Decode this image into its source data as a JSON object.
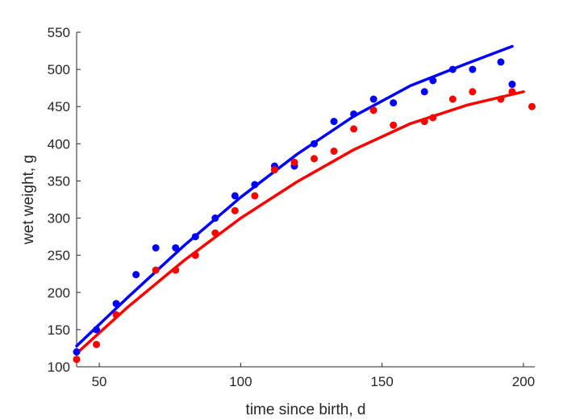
{
  "chart_data": {
    "type": "scatter",
    "xlabel": "time since birth, d",
    "ylabel": "wet weight, g",
    "xlim": [
      42,
      204
    ],
    "ylim": [
      100,
      550
    ],
    "xticks": [
      50,
      100,
      150,
      200
    ],
    "yticks": [
      100,
      150,
      200,
      250,
      300,
      350,
      400,
      450,
      500,
      550
    ],
    "grid": false,
    "series": [
      {
        "color": "#0000ff",
        "points": [
          {
            "x": 42,
            "y": 120
          },
          {
            "x": 49,
            "y": 150
          },
          {
            "x": 56,
            "y": 185
          },
          {
            "x": 63,
            "y": 224
          },
          {
            "x": 70,
            "y": 260
          },
          {
            "x": 77,
            "y": 260
          },
          {
            "x": 84,
            "y": 275
          },
          {
            "x": 91,
            "y": 300
          },
          {
            "x": 98,
            "y": 330
          },
          {
            "x": 105,
            "y": 345
          },
          {
            "x": 112,
            "y": 370
          },
          {
            "x": 119,
            "y": 370
          },
          {
            "x": 126,
            "y": 400
          },
          {
            "x": 133,
            "y": 430
          },
          {
            "x": 140,
            "y": 440
          },
          {
            "x": 147,
            "y": 460
          },
          {
            "x": 154,
            "y": 455
          },
          {
            "x": 165,
            "y": 470
          },
          {
            "x": 168,
            "y": 485
          },
          {
            "x": 175,
            "y": 500
          },
          {
            "x": 182,
            "y": 500
          },
          {
            "x": 192,
            "y": 510
          },
          {
            "x": 196,
            "y": 480
          }
        ],
        "fit": [
          {
            "x": 42,
            "y": 128
          },
          {
            "x": 60,
            "y": 193
          },
          {
            "x": 80,
            "y": 263
          },
          {
            "x": 100,
            "y": 328
          },
          {
            "x": 120,
            "y": 386
          },
          {
            "x": 140,
            "y": 437
          },
          {
            "x": 160,
            "y": 478
          },
          {
            "x": 180,
            "y": 508
          },
          {
            "x": 196,
            "y": 531
          }
        ]
      },
      {
        "color": "#ff0000",
        "points": [
          {
            "x": 42,
            "y": 110
          },
          {
            "x": 49,
            "y": 130
          },
          {
            "x": 56,
            "y": 170
          },
          {
            "x": 70,
            "y": 230
          },
          {
            "x": 77,
            "y": 230
          },
          {
            "x": 84,
            "y": 250
          },
          {
            "x": 91,
            "y": 280
          },
          {
            "x": 98,
            "y": 310
          },
          {
            "x": 105,
            "y": 330
          },
          {
            "x": 112,
            "y": 365
          },
          {
            "x": 119,
            "y": 375
          },
          {
            "x": 126,
            "y": 380
          },
          {
            "x": 133,
            "y": 390
          },
          {
            "x": 140,
            "y": 420
          },
          {
            "x": 147,
            "y": 445
          },
          {
            "x": 154,
            "y": 425
          },
          {
            "x": 165,
            "y": 430
          },
          {
            "x": 168,
            "y": 435
          },
          {
            "x": 175,
            "y": 460
          },
          {
            "x": 182,
            "y": 470
          },
          {
            "x": 192,
            "y": 460
          },
          {
            "x": 196,
            "y": 470
          },
          {
            "x": 203,
            "y": 450
          }
        ],
        "fit": [
          {
            "x": 42,
            "y": 118
          },
          {
            "x": 60,
            "y": 180
          },
          {
            "x": 80,
            "y": 243
          },
          {
            "x": 100,
            "y": 300
          },
          {
            "x": 120,
            "y": 349
          },
          {
            "x": 140,
            "y": 392
          },
          {
            "x": 160,
            "y": 427
          },
          {
            "x": 180,
            "y": 452
          },
          {
            "x": 200,
            "y": 470
          }
        ]
      }
    ]
  }
}
